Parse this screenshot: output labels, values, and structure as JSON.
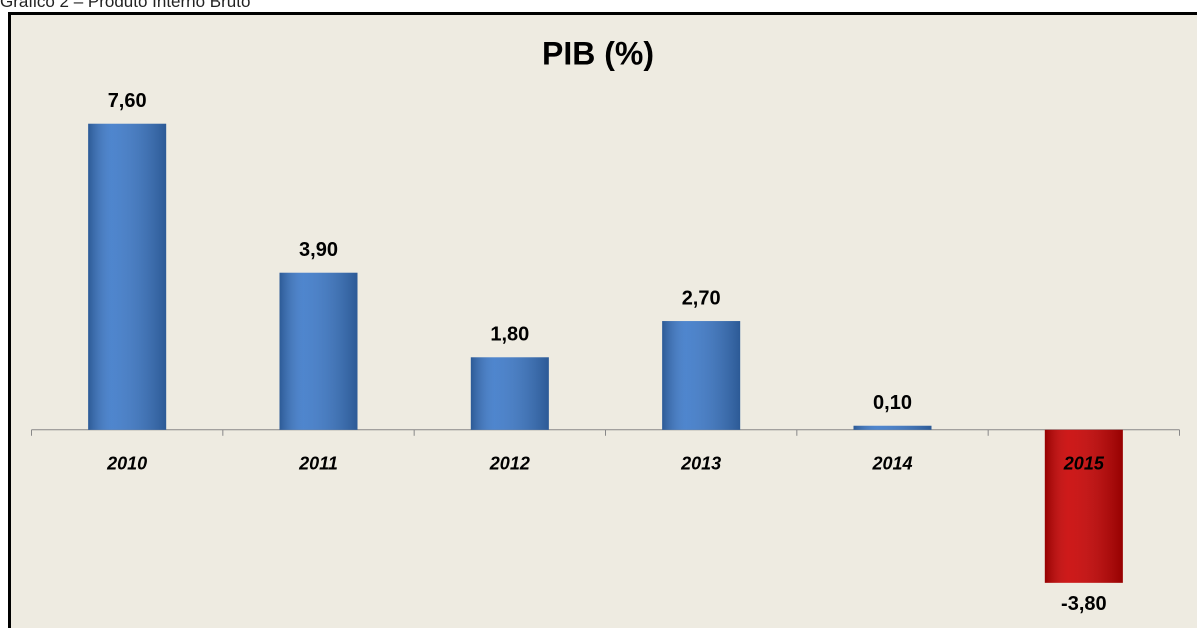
{
  "caption": "Gráfico 2 – Produto Interno Bruto",
  "chart_data": {
    "type": "bar",
    "title": "PIB (%)",
    "categories": [
      "2010",
      "2011",
      "2012",
      "2013",
      "2014",
      "2015"
    ],
    "values": [
      7.6,
      3.9,
      1.8,
      2.7,
      0.1,
      -3.8
    ],
    "value_labels": [
      "7,60",
      "3,90",
      "1,80",
      "2,70",
      "0,10",
      "-3,80"
    ],
    "colors": [
      "#3b78c8",
      "#3b78c8",
      "#3b78c8",
      "#3b78c8",
      "#3b78c8",
      "#c80000"
    ],
    "ylim": [
      -4.5,
      8.5
    ]
  }
}
